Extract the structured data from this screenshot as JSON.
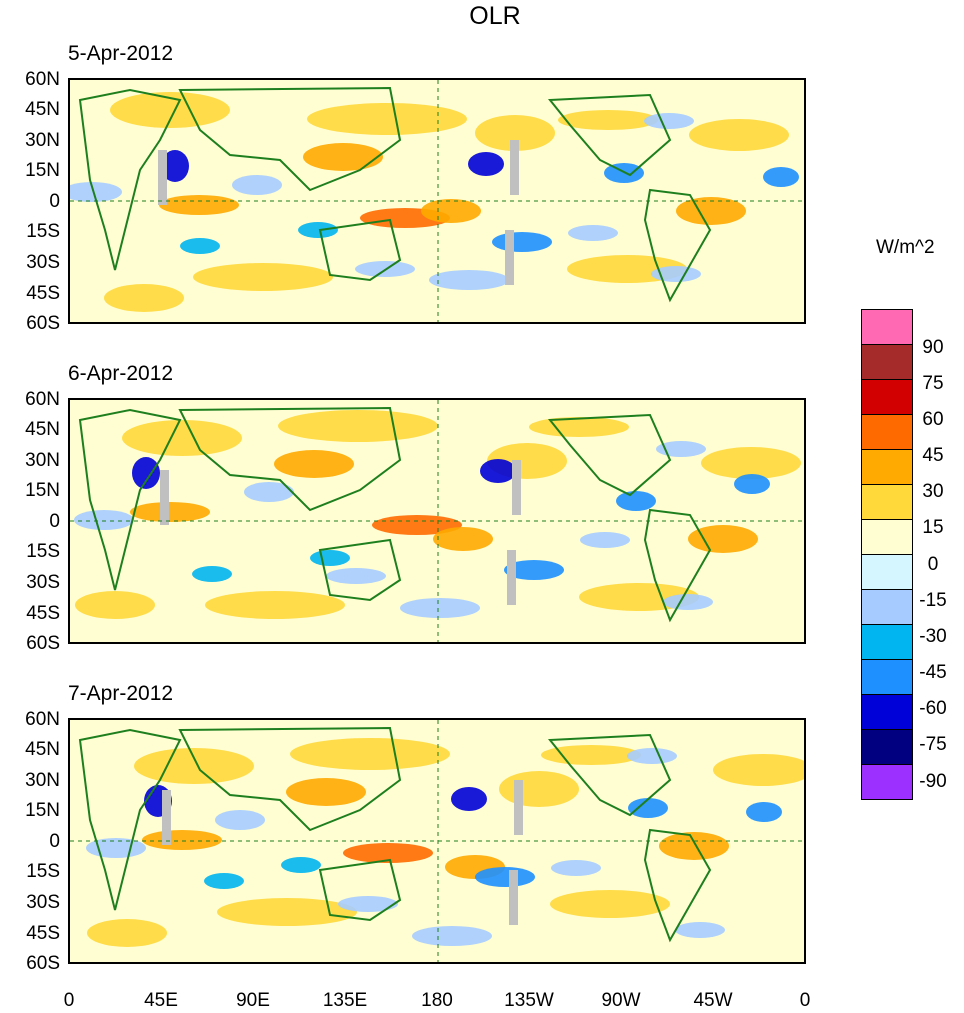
{
  "title": "OLR",
  "panels": [
    {
      "date": "5-Apr-2012"
    },
    {
      "date": "6-Apr-2012"
    },
    {
      "date": "7-Apr-2012"
    }
  ],
  "lat_labels": [
    "60N",
    "45N",
    "30N",
    "15N",
    "0",
    "15S",
    "30S",
    "45S",
    "60S"
  ],
  "lon_labels": [
    "0",
    "45E",
    "90E",
    "135E",
    "180",
    "135W",
    "90W",
    "45W",
    "0"
  ],
  "colorbar": {
    "units": "W/m^2",
    "levels": [
      "90",
      "75",
      "60",
      "45",
      "30",
      "15",
      "0",
      "-15",
      "-30",
      "-45",
      "-60",
      "-75",
      "-90"
    ],
    "colors": [
      "#ff69b4",
      "#a52a2a",
      "#d20000",
      "#ff6a00",
      "#ffaa00",
      "#ffd83a",
      "#fffed2",
      "#d5f6ff",
      "#a6ccff",
      "#00b5f0",
      "#1e90ff",
      "#0000d8",
      "#000080",
      "#9b30ff"
    ]
  },
  "colors": {
    "coastline": "#1e7f1e",
    "missing": "#c0c0c0",
    "background": "#fffed2"
  }
}
